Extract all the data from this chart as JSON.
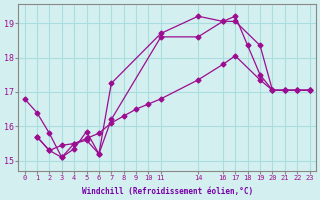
{
  "background_color": "#d4efef",
  "grid_color": "#aadddd",
  "line_color": "#9b0d91",
  "marker": "D",
  "xlabel": "Windchill (Refroidissement éolien,°C)",
  "xlabel_color": "#7700aa",
  "xlim": [
    -0.5,
    23.5
  ],
  "ylim": [
    14.7,
    19.55
  ],
  "yticks": [
    15,
    16,
    17,
    18,
    19
  ],
  "xtick_positions": [
    0,
    1,
    2,
    3,
    4,
    5,
    6,
    7,
    8,
    9,
    10,
    11,
    14,
    16,
    17,
    18,
    19,
    20,
    21,
    22,
    23
  ],
  "xtick_labels": [
    "0",
    "1",
    "2",
    "3",
    "4",
    "5",
    "6",
    "7",
    "8",
    "9",
    "10",
    "11",
    "14",
    "16",
    "17",
    "18",
    "19",
    "20",
    "21",
    "22",
    "23"
  ],
  "series": [
    {
      "x": [
        0,
        1,
        2,
        3,
        4,
        5,
        6,
        7,
        11,
        14,
        16,
        17,
        19,
        20,
        21,
        22,
        23
      ],
      "y": [
        16.8,
        16.4,
        15.8,
        15.1,
        15.5,
        15.6,
        15.2,
        16.2,
        18.6,
        18.6,
        19.05,
        19.05,
        18.35,
        17.05,
        17.05,
        17.05,
        17.05
      ]
    },
    {
      "x": [
        1,
        2,
        3,
        4,
        5,
        6,
        7,
        11,
        14,
        16,
        17,
        18,
        19,
        20,
        21,
        22,
        23
      ],
      "y": [
        15.7,
        15.3,
        15.1,
        15.35,
        15.85,
        15.2,
        17.25,
        18.7,
        19.2,
        19.05,
        19.2,
        18.35,
        17.5,
        17.05,
        17.05,
        17.05,
        17.05
      ]
    },
    {
      "x": [
        1,
        2,
        3,
        4,
        5,
        6,
        7,
        8,
        9,
        10,
        11,
        14,
        16,
        17,
        19,
        20,
        21,
        22,
        23
      ],
      "y": [
        15.7,
        15.3,
        15.45,
        15.5,
        15.65,
        15.8,
        16.1,
        16.3,
        16.5,
        16.65,
        16.8,
        17.35,
        17.8,
        18.05,
        17.35,
        17.05,
        17.05,
        17.05,
        17.05
      ]
    }
  ]
}
